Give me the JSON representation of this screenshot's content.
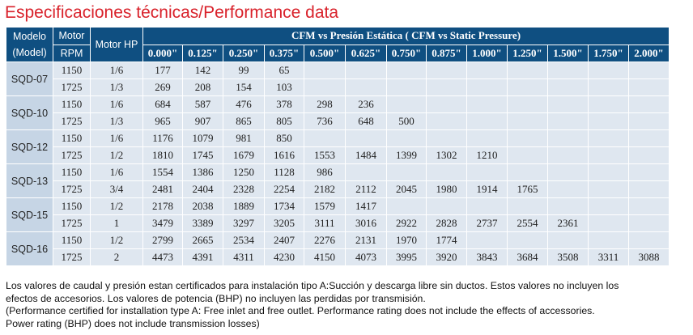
{
  "title": "Especificaciones técnicas/Performance data",
  "header": {
    "model_line1": "Modelo",
    "model_line2": "(Model)",
    "motor_line1": "Motor",
    "motor_line2": "RPM",
    "motor_hp": "Motor HP",
    "group": "CFM vs Presión Estática  ( CFM vs Static Pressure)",
    "pressures": [
      "0.000\"",
      "0.125\"",
      "0.250\"",
      "0.375\"",
      "0.500\"",
      "0.625\"",
      "0.750\"",
      "0.875\"",
      "1.000\"",
      "1.250\"",
      "1.500\"",
      "1.750\"",
      "2.000\""
    ]
  },
  "models": [
    {
      "name": "SQD-07",
      "rows": [
        {
          "rpm": "1150",
          "hp": "1/6",
          "cfm": [
            "177",
            "142",
            "99",
            "65",
            "",
            "",
            "",
            "",
            "",
            "",
            "",
            "",
            ""
          ]
        },
        {
          "rpm": "1725",
          "hp": "1/3",
          "cfm": [
            "269",
            "208",
            "154",
            "103",
            "",
            "",
            "",
            "",
            "",
            "",
            "",
            "",
            ""
          ]
        }
      ]
    },
    {
      "name": "SQD-10",
      "rows": [
        {
          "rpm": "1150",
          "hp": "1/6",
          "cfm": [
            "684",
            "587",
            "476",
            "378",
            "298",
            "236",
            "",
            "",
            "",
            "",
            "",
            "",
            ""
          ]
        },
        {
          "rpm": "1725",
          "hp": "1/3",
          "cfm": [
            "965",
            "907",
            "865",
            "805",
            "736",
            "648",
            "500",
            "",
            "",
            "",
            "",
            "",
            ""
          ]
        }
      ]
    },
    {
      "name": "SQD-12",
      "rows": [
        {
          "rpm": "1150",
          "hp": "1/6",
          "cfm": [
            "1176",
            "1079",
            "981",
            "850",
            "",
            "",
            "",
            "",
            "",
            "",
            "",
            "",
            ""
          ]
        },
        {
          "rpm": "1725",
          "hp": "1/2",
          "cfm": [
            "1810",
            "1745",
            "1679",
            "1616",
            "1553",
            "1484",
            "1399",
            "1302",
            "1210",
            "",
            "",
            "",
            ""
          ]
        }
      ]
    },
    {
      "name": "SQD-13",
      "rows": [
        {
          "rpm": "1150",
          "hp": "1/6",
          "cfm": [
            "1554",
            "1386",
            "1250",
            "1128",
            "986",
            "",
            "",
            "",
            "",
            "",
            "",
            "",
            ""
          ]
        },
        {
          "rpm": "1725",
          "hp": "3/4",
          "cfm": [
            "2481",
            "2404",
            "2328",
            "2254",
            "2182",
            "2112",
            "2045",
            "1980",
            "1914",
            "1765",
            "",
            "",
            ""
          ]
        }
      ]
    },
    {
      "name": "SQD-15",
      "rows": [
        {
          "rpm": "1150",
          "hp": "1/2",
          "cfm": [
            "2178",
            "2038",
            "1889",
            "1734",
            "1579",
            "1417",
            "",
            "",
            "",
            "",
            "",
            "",
            ""
          ]
        },
        {
          "rpm": "1725",
          "hp": "1",
          "cfm": [
            "3479",
            "3389",
            "3297",
            "3205",
            "3111",
            "3016",
            "2922",
            "2828",
            "2737",
            "2554",
            "2361",
            "",
            ""
          ]
        }
      ]
    },
    {
      "name": "SQD-16",
      "rows": [
        {
          "rpm": "1150",
          "hp": "1/2",
          "cfm": [
            "2799",
            "2665",
            "2534",
            "2407",
            "2276",
            "2131",
            "1970",
            "1774",
            "",
            "",
            "",
            "",
            ""
          ]
        },
        {
          "rpm": "1725",
          "hp": "2",
          "cfm": [
            "4473",
            "4391",
            "4311",
            "4230",
            "4150",
            "4073",
            "3995",
            "3920",
            "3843",
            "3684",
            "3508",
            "3311",
            "3088"
          ]
        }
      ]
    }
  ],
  "notes": {
    "es_line1": "Los valores de caudal y presión estan certificados para instalación tipo A:Succión y descarga libre sin ductos. Estos valores no incluyen los",
    "es_line2": "efectos de accesorios. Los valores de potencia (BHP) no incluyen las perdidas por transmisión.",
    "en_line1": "(Performance certified for installation type A: Free inlet and free outlet. Performance rating does not include the effects of accessories.",
    "en_line2": "Power rating (BHP) does not include transmission losses)"
  },
  "colors": {
    "title": "#d9222b",
    "header_bg": "#0f4f81",
    "row_bg": "#dfe7f0",
    "model_bg": "#c6d5e5"
  }
}
